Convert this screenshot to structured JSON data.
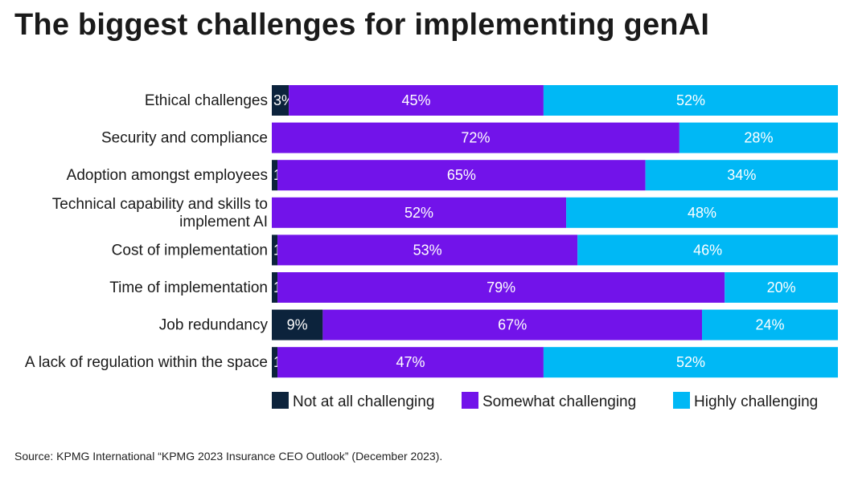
{
  "chart_data": {
    "type": "bar",
    "orientation": "horizontal",
    "stacked": true,
    "title": "The biggest challenges for implementing genAI",
    "categories": [
      "Ethical challenges",
      "Security and compliance",
      "Adoption amongst employees",
      "Technical capability and skills to implement AI",
      "Cost of implementation",
      "Time of implementation",
      "Job redundancy",
      "A lack of regulation within the space"
    ],
    "category_lines": [
      [
        "Ethical challenges"
      ],
      [
        "Security and compliance"
      ],
      [
        "Adoption amongst employees"
      ],
      [
        "Technical capability and skills to",
        "implement AI"
      ],
      [
        "Cost of implementation"
      ],
      [
        "Time of implementation"
      ],
      [
        "Job redundancy"
      ],
      [
        "A lack of regulation within the space"
      ]
    ],
    "series": [
      {
        "name": "Not at all challenging",
        "color": "#0c233c",
        "values": [
          3,
          0,
          1,
          0,
          1,
          1,
          9,
          1
        ]
      },
      {
        "name": "Somewhat challenging",
        "color": "#7213ea",
        "values": [
          45,
          72,
          65,
          52,
          53,
          79,
          67,
          47
        ]
      },
      {
        "name": "Highly challenging",
        "color": "#00b8f5",
        "values": [
          52,
          28,
          34,
          48,
          46,
          20,
          24,
          52
        ]
      }
    ],
    "unit": "%",
    "xlim": [
      0,
      100
    ],
    "legend_position": "bottom",
    "grid": false
  },
  "source": "Source: KPMG International “KPMG 2023 Insurance CEO Outlook” (December 2023)."
}
